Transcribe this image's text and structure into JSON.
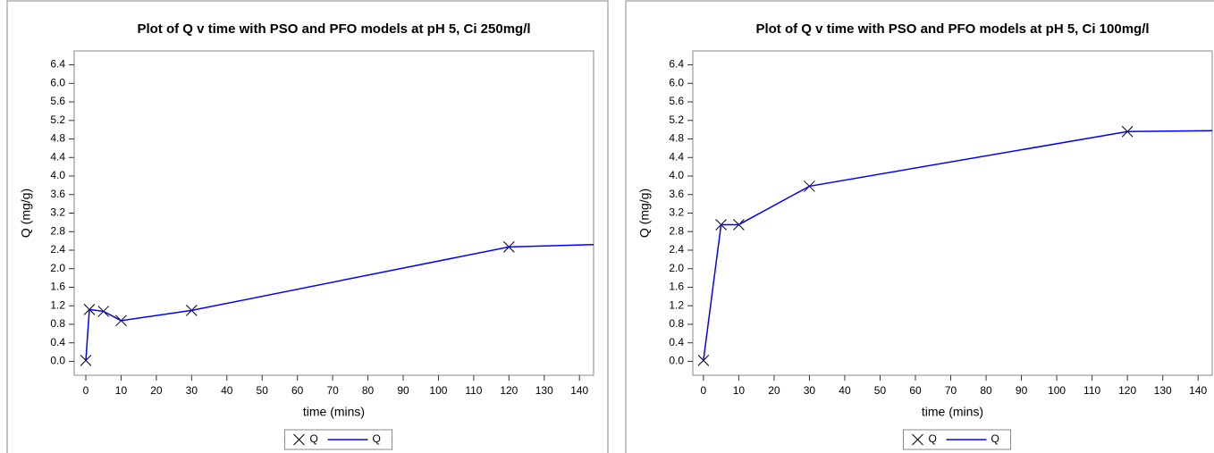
{
  "chart_data": [
    {
      "type": "line",
      "title": "Plot of Q v time with PSO and PFO models at pH 5, Ci 250mg/l",
      "xlabel": "time (mins)",
      "ylabel": "Q (mg/g)",
      "xlim": [
        -3.3,
        144
      ],
      "ylim": [
        -0.3,
        6.7
      ],
      "xticks": [
        0,
        10,
        20,
        30,
        40,
        50,
        60,
        70,
        80,
        90,
        100,
        110,
        120,
        130,
        140
      ],
      "yticks": [
        {
          "value": 0,
          "label": "0.0"
        },
        {
          "value": 0.4,
          "label": "0.4"
        },
        {
          "value": 0.8,
          "label": "0.8"
        },
        {
          "value": 1.2,
          "label": "1.2"
        },
        {
          "value": 1.6,
          "label": "1.6"
        },
        {
          "value": 2.0,
          "label": "2.0"
        },
        {
          "value": 2.4,
          "label": "2.4"
        },
        {
          "value": 2.8,
          "label": "2.8"
        },
        {
          "value": 3.2,
          "label": "3.2"
        },
        {
          "value": 3.6,
          "label": "3.6"
        },
        {
          "value": 4.0,
          "label": "4.0"
        },
        {
          "value": 4.4,
          "label": "4.4"
        },
        {
          "value": 4.8,
          "label": "4.8"
        },
        {
          "value": 5.2,
          "label": "5.2"
        },
        {
          "value": 5.6,
          "label": "5.6"
        },
        {
          "value": 6.0,
          "label": "6.0"
        },
        {
          "value": 6.4,
          "label": "6.4"
        }
      ],
      "series": [
        {
          "name": "Q",
          "style": "marker",
          "color": "#000000",
          "x": [
            0,
            1,
            5,
            10,
            30,
            120
          ],
          "values": [
            0.02,
            1.12,
            1.08,
            0.88,
            1.1,
            2.47
          ]
        },
        {
          "name": "Q",
          "style": "line",
          "color": "#0000ff",
          "x": [
            0,
            1,
            5,
            10,
            30,
            120,
            144
          ],
          "values": [
            0.02,
            1.12,
            1.08,
            0.88,
            1.1,
            2.47,
            2.52
          ]
        }
      ]
    },
    {
      "type": "line",
      "title": "Plot of Q v time with PSO and PFO models at pH 5, Ci 100mg/l",
      "xlabel": "time (mins)",
      "ylabel": "Q (mg/g)",
      "xlim": [
        -3,
        144
      ],
      "ylim": [
        -0.3,
        6.7
      ],
      "xticks": [
        0,
        10,
        20,
        30,
        40,
        50,
        60,
        70,
        80,
        90,
        100,
        110,
        120,
        130,
        140
      ],
      "yticks": [
        {
          "value": 0,
          "label": "0.0"
        },
        {
          "value": 0.4,
          "label": "0.4"
        },
        {
          "value": 0.8,
          "label": "0.8"
        },
        {
          "value": 1.2,
          "label": "1.2"
        },
        {
          "value": 1.6,
          "label": "1.6"
        },
        {
          "value": 2.0,
          "label": "2.0"
        },
        {
          "value": 2.4,
          "label": "2.4"
        },
        {
          "value": 2.8,
          "label": "2.8"
        },
        {
          "value": 3.2,
          "label": "3.2"
        },
        {
          "value": 3.6,
          "label": "3.6"
        },
        {
          "value": 4.0,
          "label": "4.0"
        },
        {
          "value": 4.4,
          "label": "4.4"
        },
        {
          "value": 4.8,
          "label": "4.8"
        },
        {
          "value": 5.2,
          "label": "5.2"
        },
        {
          "value": 5.6,
          "label": "5.6"
        },
        {
          "value": 6.0,
          "label": "6.0"
        },
        {
          "value": 6.4,
          "label": "6.4"
        }
      ],
      "series": [
        {
          "name": "Q",
          "style": "marker",
          "color": "#000000",
          "x": [
            0,
            5,
            10,
            30,
            120
          ],
          "values": [
            0.02,
            2.95,
            2.95,
            3.78,
            4.96
          ]
        },
        {
          "name": "Q",
          "style": "line",
          "color": "#0000ff",
          "x": [
            0,
            5,
            10,
            30,
            120,
            144
          ],
          "values": [
            0.02,
            2.95,
            2.95,
            3.78,
            4.96,
            4.98
          ]
        }
      ]
    }
  ]
}
